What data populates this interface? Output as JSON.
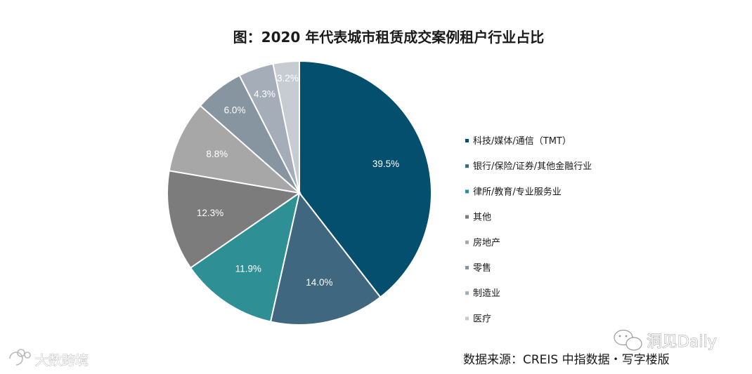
{
  "chart_data": {
    "type": "pie",
    "title": "图：2020 年代表城市租赁成交案例租户行业占比",
    "categories": [
      "科技/媒体/通信（TMT）",
      "银行/保险/证券/其他金融行业",
      "律所/教育/专业服务业",
      "其他",
      "房地产",
      "零售",
      "制造业",
      "医疗"
    ],
    "values": [
      39.5,
      14.0,
      11.9,
      12.3,
      8.8,
      6.0,
      4.3,
      3.2
    ],
    "value_labels": [
      "39.5%",
      "14.0%",
      "11.9%",
      "12.3%",
      "8.8%",
      "6.0%",
      "4.3%",
      "3.2%"
    ],
    "colors": [
      "#044E6E",
      "#3F6880",
      "#2E8F95",
      "#7C7C7C",
      "#A7A7A7",
      "#8795A1",
      "#A5AEB8",
      "#C6CCD2"
    ],
    "legend_position": "right",
    "start_angle_deg": 0,
    "direction": "clockwise"
  },
  "source": "数据来源：CREIS 中指数据・写字楼版",
  "watermarks": {
    "left": "大数跨境",
    "right": "洞见Daily"
  }
}
